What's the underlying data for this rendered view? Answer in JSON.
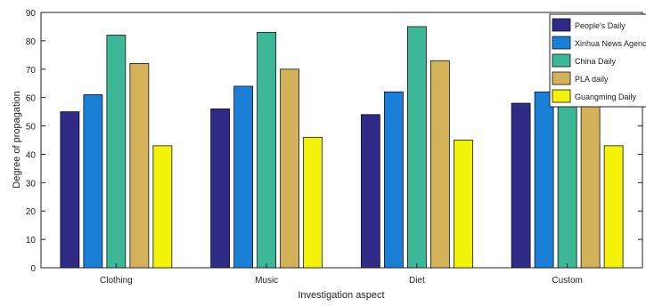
{
  "chart_data": {
    "type": "bar",
    "categories": [
      "Clothing",
      "Music",
      "Diet",
      "Custom"
    ],
    "series": [
      {
        "name": "People's Daily",
        "color": "#2e2a85",
        "values": [
          55,
          56,
          54,
          58
        ]
      },
      {
        "name": "Xinhua News Agency",
        "color": "#1a7fd6",
        "values": [
          61,
          64,
          62,
          62
        ]
      },
      {
        "name": "China Daily",
        "color": "#3cb896",
        "values": [
          82,
          83,
          85,
          66
        ]
      },
      {
        "name": "PLA daily",
        "color": "#d3b25a",
        "values": [
          72,
          70,
          73,
          68
        ]
      },
      {
        "name": "Guangming Daily",
        "color": "#f5f20a",
        "values": [
          43,
          46,
          45,
          43
        ]
      }
    ],
    "xlabel": "Investigation aspect",
    "ylabel": "Degree of propagation",
    "ylim": [
      0,
      90
    ],
    "yticks": [
      "0",
      "10",
      "20",
      "30",
      "40",
      "50",
      "60",
      "70",
      "80",
      "90"
    ],
    "legend_position": "top-right",
    "grid": false
  }
}
